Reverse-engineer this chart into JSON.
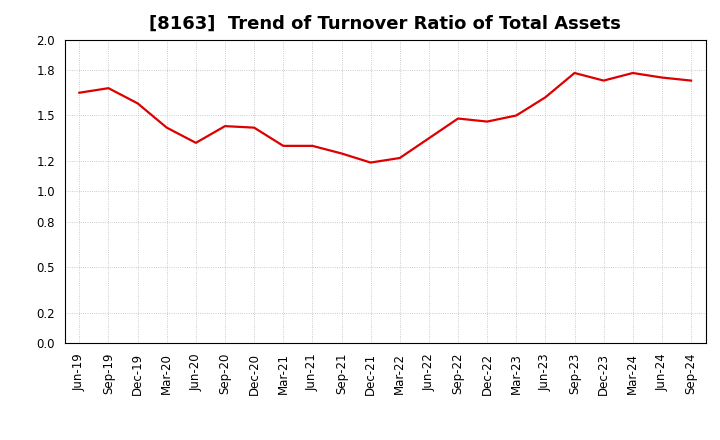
{
  "title": "[8163]  Trend of Turnover Ratio of Total Assets",
  "x_labels": [
    "Jun-19",
    "Sep-19",
    "Dec-19",
    "Mar-20",
    "Jun-20",
    "Sep-20",
    "Dec-20",
    "Mar-21",
    "Jun-21",
    "Sep-21",
    "Dec-21",
    "Mar-22",
    "Jun-22",
    "Sep-22",
    "Dec-22",
    "Mar-23",
    "Jun-23",
    "Sep-23",
    "Dec-23",
    "Mar-24",
    "Jun-24",
    "Sep-24"
  ],
  "y_values": [
    1.65,
    1.68,
    1.58,
    1.42,
    1.32,
    1.43,
    1.42,
    1.3,
    1.3,
    1.25,
    1.19,
    1.22,
    1.35,
    1.48,
    1.46,
    1.5,
    1.62,
    1.78,
    1.73,
    1.78,
    1.75,
    1.73
  ],
  "line_color": "#dd0000",
  "background_color": "#ffffff",
  "grid_color": "#bbbbbb",
  "ylim": [
    0.0,
    2.0
  ],
  "yticks": [
    0.0,
    0.2,
    0.5,
    0.8,
    1.0,
    1.2,
    1.5,
    1.8,
    2.0
  ],
  "title_fontsize": 13,
  "tick_fontsize": 8.5,
  "line_width": 1.6
}
